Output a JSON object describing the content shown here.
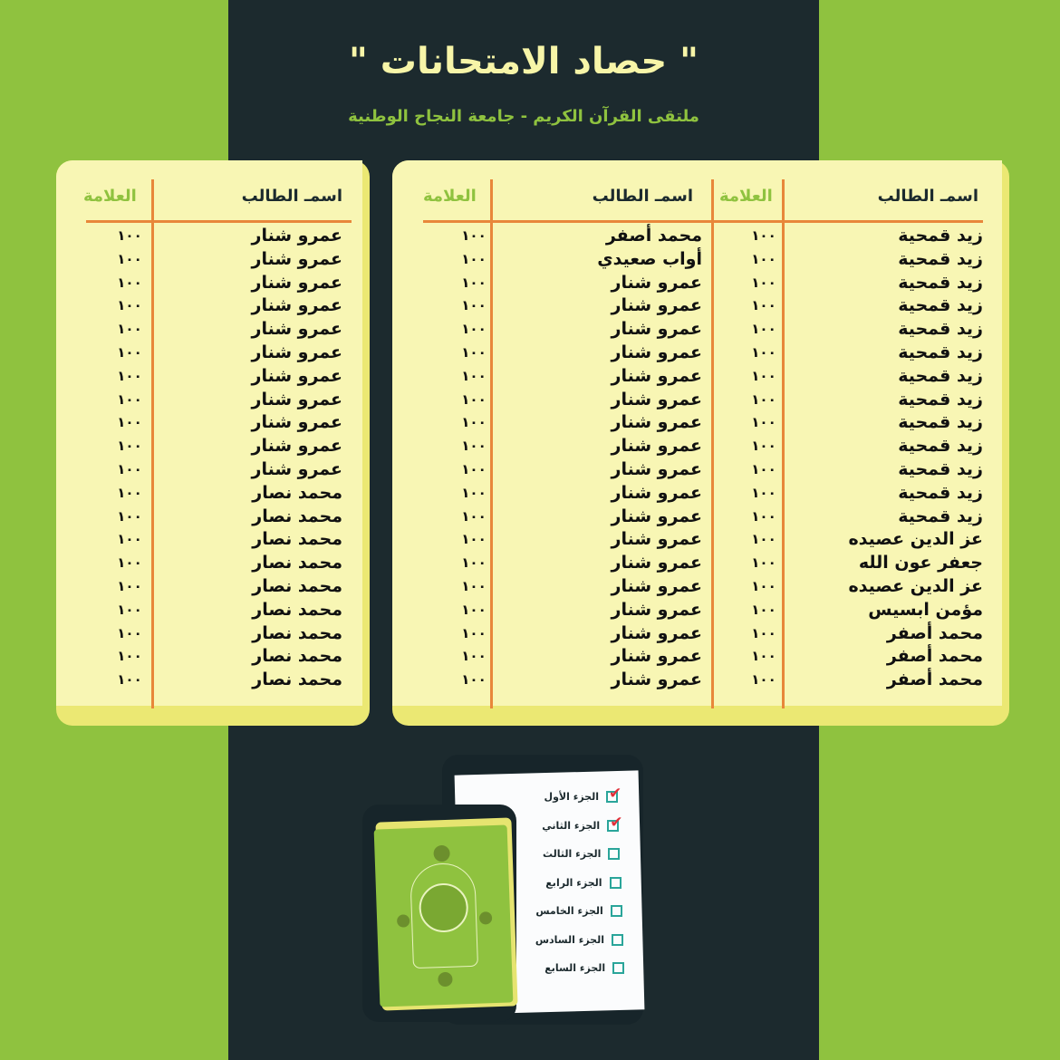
{
  "header": {
    "title": "\" حصاد الامتحانات \"",
    "subtitle": "ملتقى القرآن الكريم - جامعة النجاح الوطنية"
  },
  "table_headers": {
    "name": "اسمـ الطالب",
    "score": "العلامة"
  },
  "right_card": {
    "col1_names": [
      "زيد قمحية",
      "زيد قمحية",
      "زيد قمحية",
      "زيد قمحية",
      "زيد قمحية",
      "زيد قمحية",
      "زيد قمحية",
      "زيد قمحية",
      "زيد قمحية",
      "زيد قمحية",
      "زيد قمحية",
      "زيد قمحية",
      "زيد قمحية",
      "عز الدين عصيده",
      "جعفر عون الله",
      "عز الدين عصيده",
      "مؤمن ابسيس",
      "محمد أصفر",
      "محمد أصفر",
      "محمد أصفر"
    ],
    "col1_scores": [
      "١٠٠",
      "١٠٠",
      "١٠٠",
      "١٠٠",
      "١٠٠",
      "١٠٠",
      "١٠٠",
      "١٠٠",
      "١٠٠",
      "١٠٠",
      "١٠٠",
      "١٠٠",
      "١٠٠",
      "١٠٠",
      "١٠٠",
      "١٠٠",
      "١٠٠",
      "١٠٠",
      "١٠٠",
      "١٠٠"
    ],
    "col2_names": [
      "محمد أصفر",
      "أواب صعيدي",
      "عمرو شنار",
      "عمرو شنار",
      "عمرو شنار",
      "عمرو شنار",
      "عمرو شنار",
      "عمرو شنار",
      "عمرو شنار",
      "عمرو شنار",
      "عمرو شنار",
      "عمرو شنار",
      "عمرو شنار",
      "عمرو شنار",
      "عمرو شنار",
      "عمرو شنار",
      "عمرو شنار",
      "عمرو شنار",
      "عمرو شنار",
      "عمرو شنار"
    ],
    "col2_scores": [
      "١٠٠",
      "١٠٠",
      "١٠٠",
      "١٠٠",
      "١٠٠",
      "١٠٠",
      "١٠٠",
      "١٠٠",
      "١٠٠",
      "١٠٠",
      "١٠٠",
      "١٠٠",
      "١٠٠",
      "١٠٠",
      "١٠٠",
      "١٠٠",
      "١٠٠",
      "١٠٠",
      "١٠٠",
      "١٠٠"
    ]
  },
  "left_card": {
    "names": [
      "عمرو شنار",
      "عمرو شنار",
      "عمرو شنار",
      "عمرو شنار",
      "عمرو شنار",
      "عمرو شنار",
      "عمرو شنار",
      "عمرو شنار",
      "عمرو شنار",
      "عمرو شنار",
      "عمرو شنار",
      "محمد نصار",
      "محمد نصار",
      "محمد نصار",
      "محمد نصار",
      "محمد نصار",
      "محمد نصار",
      "محمد نصار",
      "محمد نصار",
      "محمد نصار"
    ],
    "scores": [
      "١٠٠",
      "١٠٠",
      "١٠٠",
      "١٠٠",
      "١٠٠",
      "١٠٠",
      "١٠٠",
      "١٠٠",
      "١٠٠",
      "١٠٠",
      "١٠٠",
      "١٠٠",
      "١٠٠",
      "١٠٠",
      "١٠٠",
      "١٠٠",
      "١٠٠",
      "١٠٠",
      "١٠٠",
      "١٠٠"
    ]
  },
  "checklist": [
    {
      "label": "الجزء الأول",
      "checked": true
    },
    {
      "label": "الجزء الثاني",
      "checked": true
    },
    {
      "label": "الجزء الثالث",
      "checked": false
    },
    {
      "label": "الجزء الرابع",
      "checked": false
    },
    {
      "label": "الجزء الخامس",
      "checked": false
    },
    {
      "label": "الجزء السادس",
      "checked": false
    },
    {
      "label": "الجزء السابع",
      "checked": false
    }
  ],
  "book_calligraphy": "القرآن الكريم",
  "colors": {
    "green": "#8fc23f",
    "dark": "#1c2a2e",
    "card": "#f8f6b4",
    "accent_line": "#e8873a",
    "check": "#e0303a"
  }
}
